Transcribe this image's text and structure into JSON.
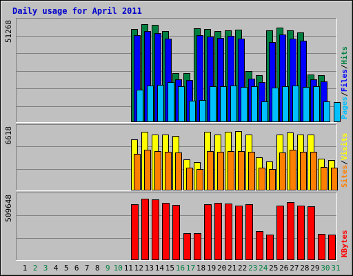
{
  "chart_data": {
    "type": "bar",
    "title": "Daily usage for April 2011",
    "x": [
      "1",
      "2",
      "3",
      "4",
      "5",
      "6",
      "7",
      "8",
      "9",
      "10",
      "11",
      "12",
      "13",
      "14",
      "15",
      "16",
      "17",
      "18",
      "19",
      "20",
      "21",
      "22",
      "23",
      "24",
      "25",
      "26",
      "27",
      "28",
      "29",
      "30",
      "31"
    ],
    "weekend_days": [
      "2",
      "3",
      "9",
      "10",
      "16",
      "17",
      "23",
      "24",
      "30",
      "31"
    ],
    "panels": [
      {
        "name": "hits-files-pages",
        "ymax": 51268,
        "ymax_label": "51268",
        "side_labels": [
          "Pages",
          "/",
          "Files",
          "/",
          "Hits"
        ],
        "side_colors": [
          "#00c0ff",
          "#000000",
          "#0000ff",
          "#000000",
          "#008040"
        ],
        "series": [
          {
            "name": "Hits",
            "color": "#008040",
            "values": [
              0,
              0,
              0,
              0,
              0,
              0,
              0,
              0,
              0,
              0,
              0,
              47000,
              49500,
              49000,
              46000,
              24500,
              24500,
              47500,
              47000,
              46000,
              46500,
              46800,
              25500,
              23500,
              46500,
              47800,
              46500,
              45200,
              24000,
              23500,
              0
            ]
          },
          {
            "name": "Files",
            "color": "#0000ff",
            "values": [
              0,
              0,
              0,
              0,
              0,
              0,
              0,
              0,
              0,
              0,
              0,
              44000,
              46000,
              44800,
              42000,
              21300,
              21000,
              44000,
              43300,
              42500,
              43500,
              42300,
              21600,
              20000,
              40500,
              44100,
              42300,
              41000,
              21500,
              20500,
              0
            ]
          },
          {
            "name": "Pages",
            "color": "#00c0ff",
            "values": [
              0,
              0,
              0,
              0,
              0,
              0,
              0,
              0,
              0,
              0,
              0,
              16000,
              18300,
              18600,
              20000,
              18000,
              10700,
              11000,
              18000,
              17800,
              18300,
              17600,
              18000,
              10300,
              17300,
              18000,
              18300,
              17600,
              18000,
              10300,
              10000
            ]
          }
        ]
      },
      {
        "name": "visits-sites",
        "ymax": 6618,
        "ymax_label": "6618",
        "side_labels": [
          "Sites",
          "/",
          "Visits"
        ],
        "side_colors": [
          "#ff8000",
          "#000000",
          "#ffff00"
        ],
        "series": [
          {
            "name": "Visits",
            "color": "#ffff00",
            "values": [
              0,
              0,
              0,
              0,
              0,
              0,
              0,
              0,
              0,
              0,
              0,
              5300,
              6100,
              5800,
              5800,
              5700,
              3200,
              2900,
              6100,
              5800,
              6100,
              6200,
              5800,
              3400,
              3000,
              5800,
              6000,
              5800,
              5800,
              3300,
              3100
            ]
          },
          {
            "name": "Sites",
            "color": "#ff8000",
            "values": [
              0,
              0,
              0,
              0,
              0,
              0,
              0,
              0,
              0,
              0,
              0,
              3800,
              4200,
              4100,
              4000,
              3900,
              2300,
              2200,
              4100,
              4000,
              4100,
              4100,
              4000,
              2300,
              2200,
              3900,
              4200,
              4000,
              4000,
              2400,
              2300
            ]
          }
        ]
      },
      {
        "name": "kbytes",
        "ymax": 509648,
        "ymax_label": "509648",
        "side_labels": [
          "KBytes"
        ],
        "side_colors": [
          "#ff0000"
        ],
        "series": [
          {
            "name": "KBytes",
            "color": "#ff0000",
            "values": [
              0,
              0,
              0,
              0,
              0,
              0,
              0,
              0,
              0,
              0,
              0,
              440000,
              480000,
              475000,
              450000,
              435000,
              210000,
              210000,
              440000,
              450000,
              445000,
              430000,
              440000,
              225000,
              195000,
              425000,
              455000,
              430000,
              420000,
              205000,
              195000
            ]
          }
        ]
      }
    ],
    "colors": {
      "background": "#c0c0c0",
      "title": "#0000ff",
      "weekday_label": "#000000",
      "weekend_label": "#008040"
    }
  }
}
